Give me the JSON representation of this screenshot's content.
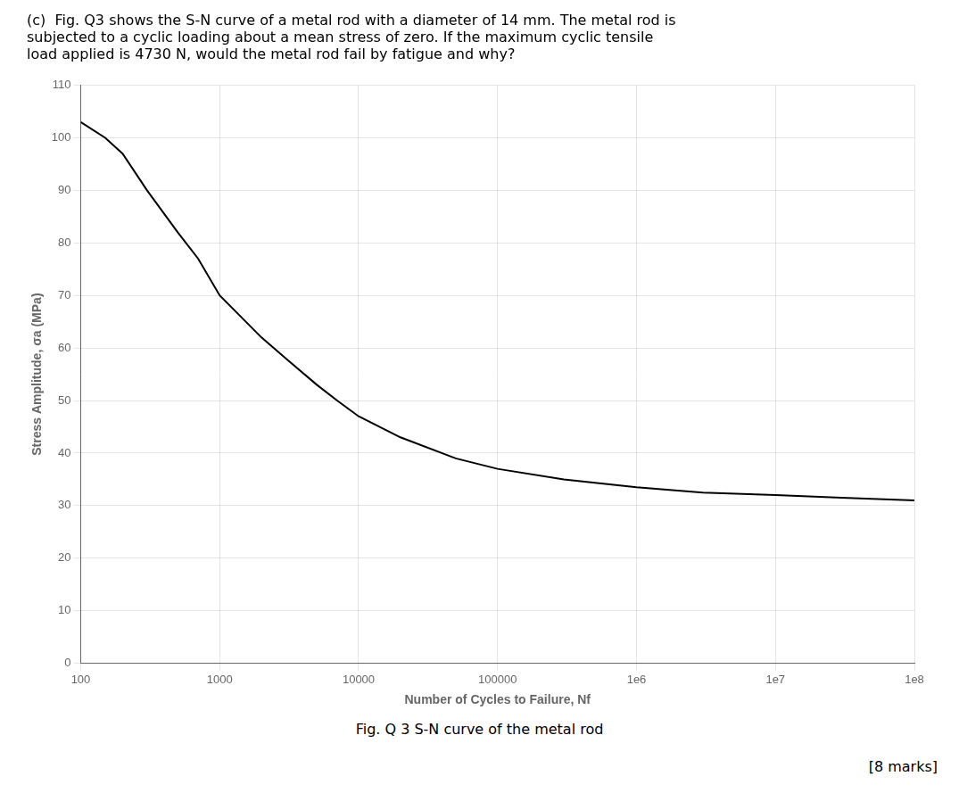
{
  "chart_data": {
    "type": "line",
    "title": [
      "(c)  Fig. Q3 shows the S-N curve of a metal rod with a diameter of 14 mm. The metal rod is",
      "subjected to a cyclic loading about a mean stress of zero. If the maximum cyclic tensile",
      "load applied is 4730 N, would the metal rod fail by fatigue and why?"
    ],
    "xlabel": "Number of Cycles to Failure, Nf",
    "ylabel": "Stress Amplitude, σa (MPa)",
    "annotations": [
      "Fig. Q 3 S-N curve of the metal rod",
      "[8 marks]"
    ],
    "x": [
      100,
      150,
      200,
      300,
      500,
      700,
      1000,
      2000,
      3000,
      5000,
      7000,
      10000,
      20000,
      50000,
      100000,
      300000,
      1000000,
      3000000,
      10000000,
      30000000,
      100000000
    ],
    "values": [
      103,
      100,
      97,
      90,
      82,
      77,
      70,
      62,
      58,
      53,
      50,
      47,
      43,
      39,
      37,
      35,
      33.5,
      32.5,
      32,
      31.5,
      31
    ],
    "color": "#000000",
    "log": "x",
    "grid": true,
    "xlim": [
      100,
      100000000
    ],
    "xticks": [
      100,
      1000,
      10000,
      100000,
      {
        "value": 1000000,
        "label": "1e6"
      },
      {
        "value": 10000000,
        "label": "1e7"
      },
      {
        "value": 100000000,
        "label": "1e8"
      }
    ],
    "ylim": [
      0,
      110
    ],
    "yticks": [
      0,
      10,
      20,
      30,
      40,
      50,
      60,
      70,
      80,
      90,
      100,
      110
    ]
  }
}
